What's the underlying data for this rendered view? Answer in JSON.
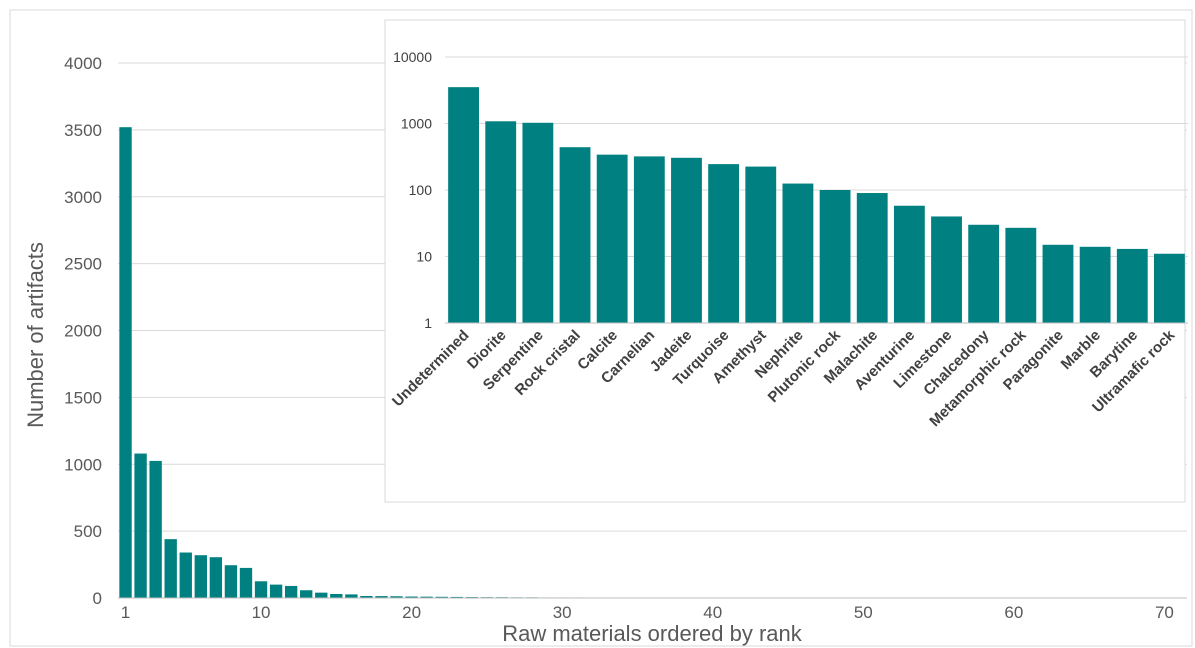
{
  "chart_data": [
    {
      "type": "bar",
      "xlabel": "Raw materials ordered by rank",
      "ylabel": "Number of artifacts",
      "ylim": [
        0,
        4000
      ],
      "yticks": [
        "0",
        "500",
        "1000",
        "1500",
        "2000",
        "2500",
        "3000",
        "3500",
        "4000"
      ],
      "xlim": [
        1,
        71
      ],
      "xticks": [
        "1",
        "10",
        "20",
        "30",
        "40",
        "50",
        "60",
        "70"
      ],
      "grid": "horizontal",
      "bar_color": "#008080",
      "x": [
        1,
        2,
        3,
        4,
        5,
        6,
        7,
        8,
        9,
        10,
        11,
        12,
        13,
        14,
        15,
        16,
        17,
        18,
        19,
        20,
        21,
        22,
        23,
        24,
        25,
        26,
        27,
        28,
        29,
        30,
        31,
        32,
        33,
        34,
        35,
        36,
        37,
        38,
        39,
        40,
        41,
        42,
        43,
        44,
        45,
        46,
        47,
        48,
        49,
        50,
        51,
        52,
        53,
        54,
        55,
        56,
        57,
        58,
        59,
        60,
        61,
        62,
        63,
        64,
        65,
        66,
        67,
        68,
        69,
        70
      ],
      "values": [
        3520,
        1080,
        1025,
        440,
        340,
        320,
        305,
        245,
        225,
        125,
        100,
        90,
        58,
        40,
        30,
        27,
        15,
        14,
        13,
        11,
        10,
        9,
        8,
        7,
        6,
        6,
        5,
        5,
        4,
        4,
        4,
        3,
        3,
        3,
        3,
        2,
        2,
        2,
        2,
        2,
        2,
        2,
        2,
        2,
        1,
        1,
        1,
        1,
        1,
        1,
        1,
        1,
        1,
        1,
        1,
        1,
        1,
        1,
        1,
        1,
        1,
        1,
        1,
        1,
        1,
        1,
        1,
        1,
        1,
        1
      ]
    },
    {
      "type": "bar",
      "scale": "log",
      "ylim": [
        1,
        10000
      ],
      "yticks": [
        "1",
        "10",
        "100",
        "1000",
        "10000"
      ],
      "bar_color": "#008080",
      "categories": [
        "Undetermined",
        "Diorite",
        "Serpentine",
        "Rock cristal",
        "Calcite",
        "Carnelian",
        "Jadeite",
        "Turquoise",
        "Amethyst",
        "Nephrite",
        "Plutonic rock",
        "Malachite",
        "Aventurine",
        "Limestone",
        "Chalcedony",
        "Metamorphic rock",
        "Paragonite",
        "Marble",
        "Barytine",
        "Ultramafic rock"
      ],
      "values": [
        3520,
        1080,
        1025,
        440,
        340,
        320,
        305,
        245,
        225,
        125,
        100,
        90,
        58,
        40,
        30,
        27,
        15,
        14,
        13,
        11
      ]
    }
  ]
}
